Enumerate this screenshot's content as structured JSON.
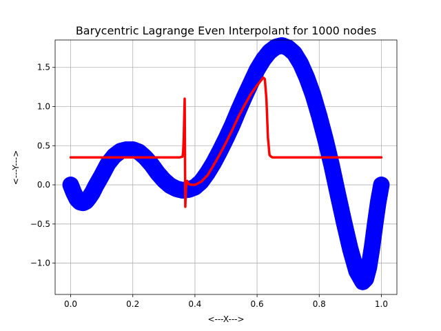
{
  "chart_data": {
    "type": "line",
    "title": "Barycentric Lagrange Even Interpolant for 1000 nodes",
    "xlabel": "<---X--->",
    "ylabel": "<---Y--->",
    "xlim": [
      -0.05,
      1.05
    ],
    "ylim": [
      -1.4,
      1.85
    ],
    "xticks": [
      0.0,
      0.2,
      0.4,
      0.6,
      0.8,
      1.0
    ],
    "xtick_labels": [
      "0.0",
      "0.2",
      "0.4",
      "0.6",
      "0.8",
      "1.0"
    ],
    "yticks": [
      -1.0,
      -0.5,
      0.0,
      0.5,
      1.0,
      1.5
    ],
    "ytick_labels": [
      "−1.0",
      "−0.5",
      "0.0",
      "0.5",
      "1.0",
      "1.5"
    ],
    "grid": true,
    "colors": {
      "nodes": "#0000ff",
      "interpolant": "#ff0000"
    },
    "series": [
      {
        "style": "markers",
        "x": [
          0.0,
          0.01,
          0.02,
          0.03,
          0.04,
          0.05,
          0.06,
          0.07,
          0.08,
          0.1,
          0.12,
          0.14,
          0.16,
          0.18,
          0.2,
          0.22,
          0.24,
          0.26,
          0.28,
          0.3,
          0.32,
          0.34,
          0.36,
          0.38,
          0.4,
          0.42,
          0.44,
          0.46,
          0.48,
          0.5,
          0.52,
          0.54,
          0.56,
          0.58,
          0.6,
          0.62,
          0.64,
          0.66,
          0.68,
          0.7,
          0.72,
          0.74,
          0.76,
          0.78,
          0.8,
          0.82,
          0.84,
          0.86,
          0.88,
          0.9,
          0.92,
          0.94,
          0.95,
          0.96,
          0.97,
          0.98,
          0.99,
          1.0
        ],
        "y": [
          0.0,
          -0.1,
          -0.18,
          -0.22,
          -0.23,
          -0.21,
          -0.16,
          -0.1,
          -0.02,
          0.12,
          0.27,
          0.37,
          0.43,
          0.45,
          0.45,
          0.42,
          0.35,
          0.26,
          0.15,
          0.06,
          -0.01,
          -0.05,
          -0.07,
          -0.06,
          -0.03,
          0.04,
          0.15,
          0.28,
          0.43,
          0.59,
          0.76,
          0.95,
          1.13,
          1.3,
          1.47,
          1.6,
          1.7,
          1.76,
          1.78,
          1.75,
          1.68,
          1.55,
          1.37,
          1.15,
          0.88,
          0.58,
          0.25,
          -0.12,
          -0.48,
          -0.82,
          -1.1,
          -1.24,
          -1.2,
          -1.05,
          -0.8,
          -0.5,
          -0.22,
          0.0
        ]
      },
      {
        "style": "line",
        "x": [
          0.0,
          0.1,
          0.2,
          0.3,
          0.35,
          0.36,
          0.362,
          0.364,
          0.366,
          0.367,
          0.368,
          0.369,
          0.37,
          0.372,
          0.375,
          0.38,
          0.39,
          0.4,
          0.42,
          0.44,
          0.46,
          0.48,
          0.5,
          0.52,
          0.54,
          0.56,
          0.58,
          0.6,
          0.61,
          0.62,
          0.625,
          0.63,
          0.635,
          0.64,
          0.645,
          0.65,
          0.7,
          0.8,
          0.9,
          1.0
        ],
        "y": [
          0.35,
          0.35,
          0.35,
          0.35,
          0.35,
          0.36,
          0.42,
          0.6,
          0.95,
          1.1,
          0.4,
          -0.28,
          -0.15,
          0.0,
          0.05,
          0.01,
          0.0,
          0.0,
          0.04,
          0.12,
          0.25,
          0.39,
          0.54,
          0.7,
          0.87,
          1.02,
          1.16,
          1.27,
          1.32,
          1.37,
          1.35,
          1.1,
          0.6,
          0.38,
          0.36,
          0.35,
          0.35,
          0.35,
          0.35,
          0.35
        ]
      }
    ]
  }
}
